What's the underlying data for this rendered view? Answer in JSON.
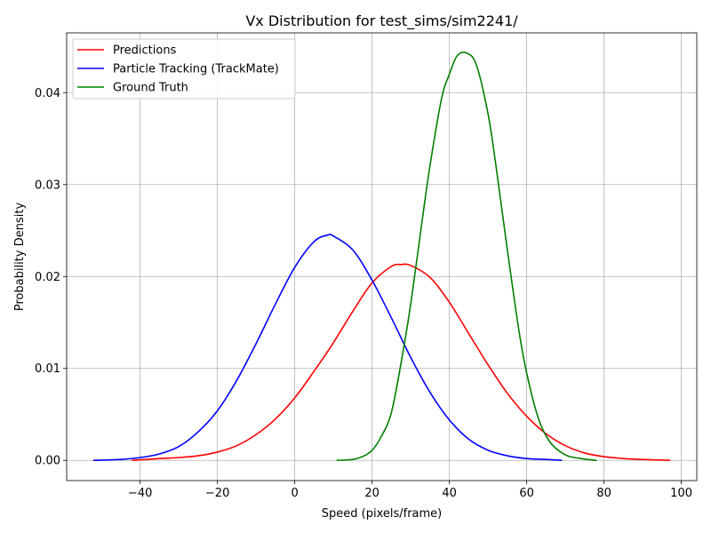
{
  "chart_data": {
    "type": "line",
    "title": "Vx Distribution for test_sims/sim2241/",
    "xlabel": "Speed (pixels/frame)",
    "ylabel": "Probability Density",
    "xlim": [
      -59,
      104
    ],
    "ylim": [
      -0.0022,
      0.0465
    ],
    "xticks": [
      -40,
      -20,
      0,
      20,
      40,
      60,
      80,
      100
    ],
    "xtick_labels": [
      "−40",
      "−20",
      "0",
      "20",
      "40",
      "60",
      "80",
      "100"
    ],
    "yticks": [
      0.0,
      0.01,
      0.02,
      0.03,
      0.04
    ],
    "ytick_labels": [
      "0.00",
      "0.01",
      "0.02",
      "0.03",
      "0.04"
    ],
    "grid": true,
    "legend_position": "top-left",
    "series": [
      {
        "name": "Predictions",
        "color": "#ff0000",
        "x": [
          -42,
          -35,
          -30,
          -25,
          -20,
          -15,
          -10,
          -5,
          0,
          5,
          10,
          15,
          20,
          25,
          27.5,
          30,
          35,
          40,
          45,
          50,
          55,
          60,
          65,
          70,
          75,
          80,
          85,
          90,
          97
        ],
        "y": [
          0.0,
          0.0002,
          0.0003,
          0.0005,
          0.0009,
          0.0016,
          0.0028,
          0.0045,
          0.0068,
          0.0097,
          0.0128,
          0.0162,
          0.0193,
          0.0211,
          0.0213,
          0.0212,
          0.0199,
          0.0172,
          0.0138,
          0.0104,
          0.0073,
          0.0048,
          0.0029,
          0.0016,
          0.0008,
          0.0004,
          0.0002,
          0.0001,
          0.0
        ]
      },
      {
        "name": "Particle Tracking (TrackMate)",
        "color": "#0000ff",
        "x": [
          -52,
          -45,
          -40,
          -35,
          -30,
          -25,
          -20,
          -15,
          -10,
          -5,
          0,
          5,
          8.5,
          10,
          15,
          20,
          25,
          30,
          35,
          40,
          45,
          50,
          55,
          60,
          65,
          69
        ],
        "y": [
          0.0,
          0.0001,
          0.0003,
          0.0007,
          0.0015,
          0.0031,
          0.0054,
          0.0087,
          0.0127,
          0.017,
          0.021,
          0.0238,
          0.0245,
          0.0244,
          0.0229,
          0.0196,
          0.0155,
          0.0112,
          0.0074,
          0.0044,
          0.0023,
          0.0011,
          0.0005,
          0.0002,
          0.0001,
          0.0
        ]
      },
      {
        "name": "Ground Truth",
        "color": "#008000",
        "x": [
          11,
          15,
          18,
          20,
          22,
          25,
          28,
          30,
          33,
          35,
          38,
          40,
          42,
          44.5,
          47,
          50,
          52,
          55,
          58,
          60,
          63,
          66,
          70,
          74,
          78
        ],
        "y": [
          0.0,
          0.0001,
          0.0005,
          0.0011,
          0.0023,
          0.0052,
          0.0118,
          0.017,
          0.0262,
          0.0321,
          0.0394,
          0.042,
          0.044,
          0.0443,
          0.043,
          0.0377,
          0.0322,
          0.0229,
          0.0141,
          0.0095,
          0.0046,
          0.002,
          0.0006,
          0.0002,
          0.0
        ]
      }
    ]
  }
}
